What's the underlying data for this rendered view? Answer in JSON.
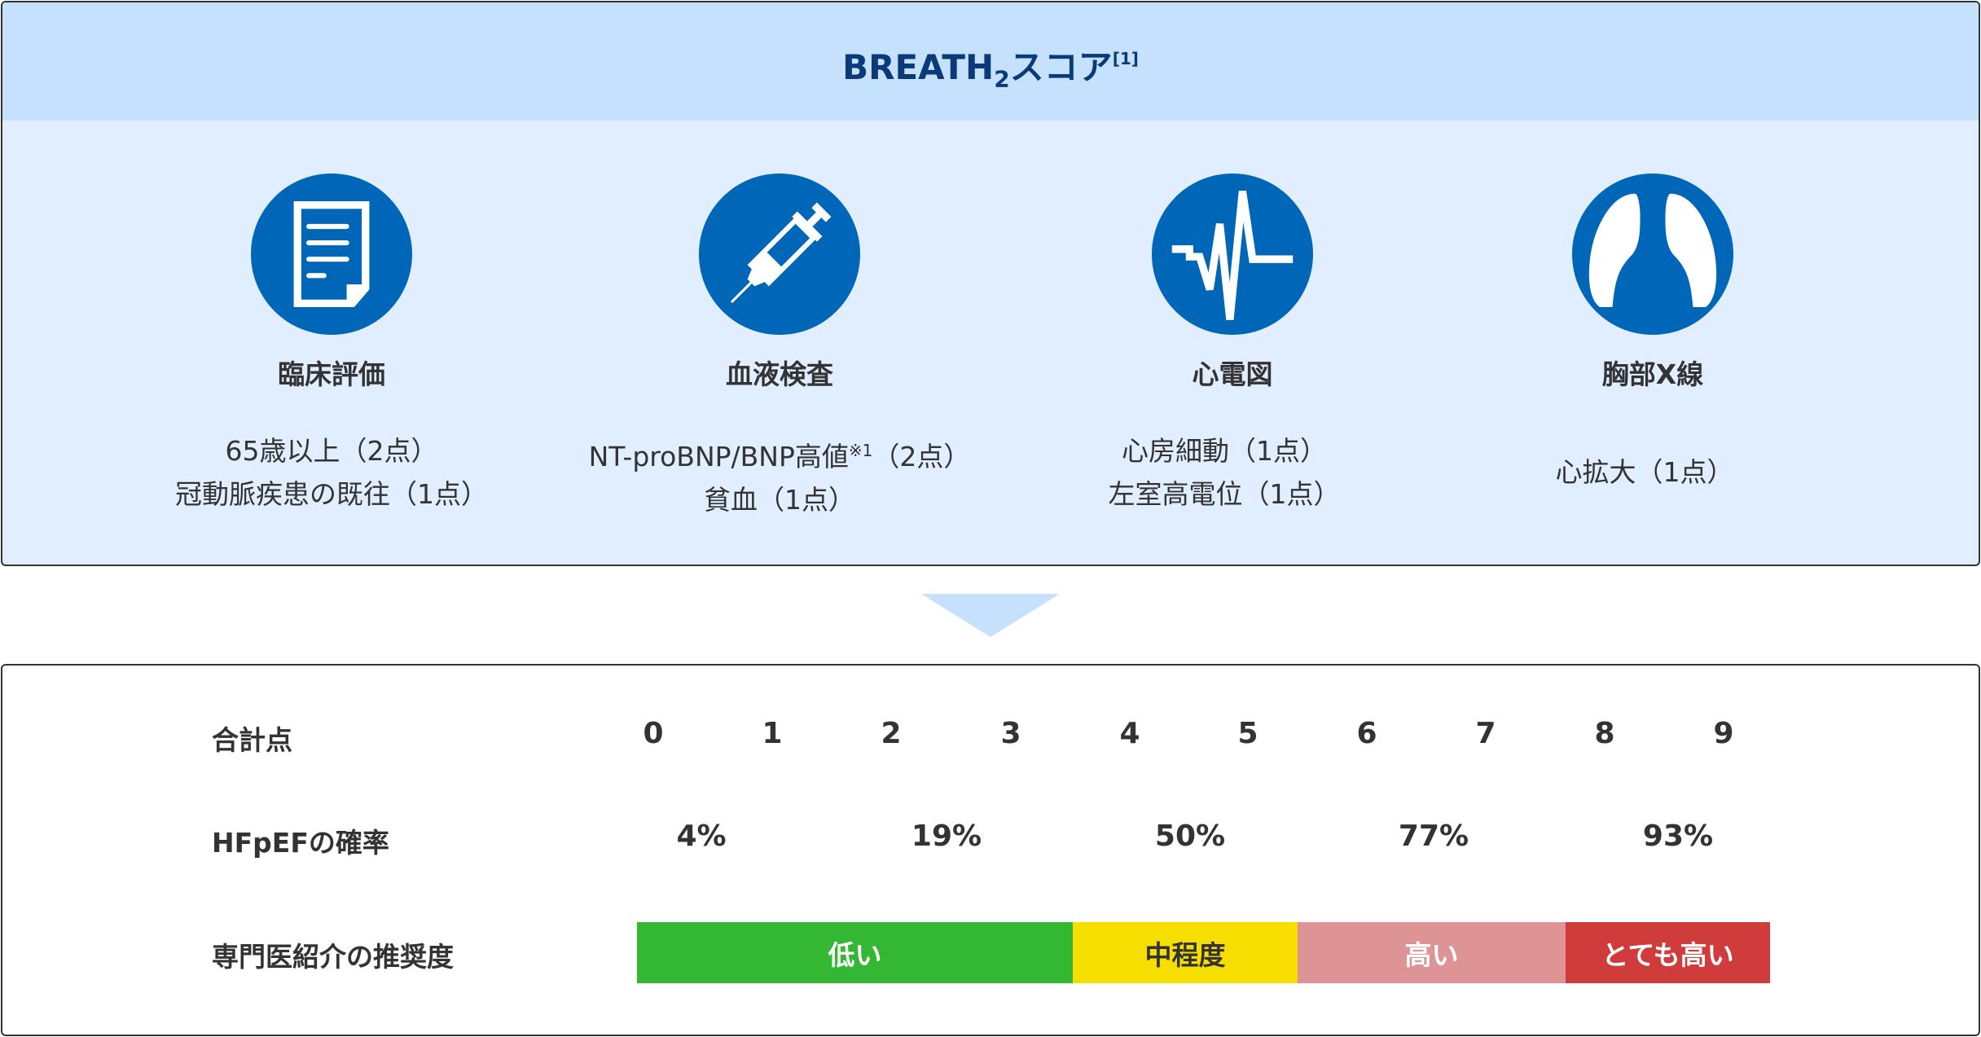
{
  "title": {
    "main": "BREATH",
    "sub": "2",
    "suffix": "スコア",
    "ref": "[1]"
  },
  "categories": [
    {
      "icon": "document-icon",
      "label": "臨床評価",
      "lines": [
        "65歳以上（2点）",
        "冠動脈疾患の既往（1点）"
      ]
    },
    {
      "icon": "syringe-icon",
      "label": "血液検査",
      "lines": [
        "NT-proBNP/BNP高値",
        "貧血（1点）"
      ],
      "note": "※1",
      "line1_suffix": "（2点）"
    },
    {
      "icon": "ecg-icon",
      "label": "心電図",
      "lines": [
        "心房細動（1点）",
        "左室高電位（1点）"
      ]
    },
    {
      "icon": "lungs-icon",
      "label": "胸部X線",
      "lines": [
        "心拡大（1点）"
      ]
    }
  ],
  "table": {
    "total_label": "合計点",
    "scores": [
      "0",
      "1",
      "2",
      "3",
      "4",
      "5",
      "6",
      "7",
      "8",
      "9"
    ],
    "prob_label": "HFpEFの確率",
    "probabilities": [
      "4%",
      "19%",
      "50%",
      "77%",
      "93%"
    ],
    "rec_label": "専門医紹介の推奨度",
    "levels": [
      {
        "label": "低い",
        "color": "#34b833",
        "text_color": "#ffffff"
      },
      {
        "label": "中程度",
        "color": "#f5de00",
        "text_color": "#333333"
      },
      {
        "label": "高い",
        "color": "#de9494",
        "text_color": "#ffffff"
      },
      {
        "label": "とても高い",
        "color": "#d03b3b",
        "text_color": "#ffffff"
      }
    ]
  },
  "colors": {
    "icon_bg": "#0066b8",
    "header_bg": "#c5e1fe",
    "panel_bg": "#e1eeff",
    "title": "#0a3a7a"
  }
}
